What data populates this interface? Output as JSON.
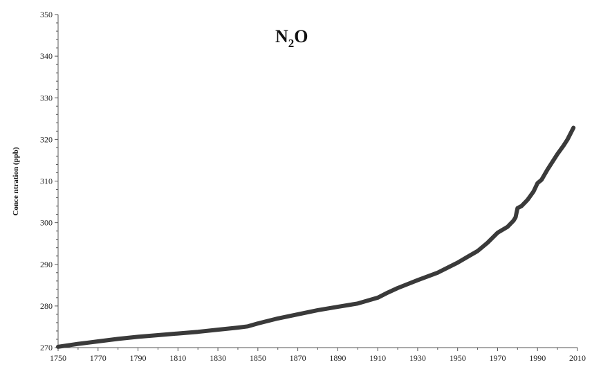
{
  "chart_data": {
    "type": "line",
    "title_main": "N",
    "title_sub": "2",
    "title_tail": "O",
    "ylabel": "Conce ntration (ppb)",
    "xlabel": "",
    "xlim": [
      1750,
      2010
    ],
    "ylim": [
      270,
      350
    ],
    "x_ticks": [
      1750,
      1770,
      1790,
      1810,
      1830,
      1850,
      1870,
      1890,
      1910,
      1930,
      1950,
      1970,
      1990,
      2010
    ],
    "y_ticks": [
      270,
      280,
      290,
      300,
      310,
      320,
      330,
      340,
      350
    ],
    "grid": false,
    "legend": "none",
    "line_color": "#3a3a3a",
    "series": [
      {
        "x": [
          1750,
          1760,
          1770,
          1780,
          1790,
          1800,
          1810,
          1820,
          1830,
          1840,
          1845,
          1850,
          1860,
          1870,
          1880,
          1890,
          1900,
          1910,
          1915,
          1920,
          1930,
          1940,
          1950,
          1955,
          1960,
          1965,
          1970,
          1975,
          1978,
          1979,
          1980,
          1982,
          1985,
          1988,
          1990,
          1992,
          1995,
          1998,
          2000,
          2003,
          2005,
          2008
        ],
        "y": [
          270.2,
          270.9,
          271.5,
          272.1,
          272.6,
          273.0,
          273.4,
          273.8,
          274.3,
          274.8,
          275.1,
          275.8,
          277.0,
          278.0,
          279.0,
          279.8,
          280.6,
          282.0,
          283.2,
          284.3,
          286.2,
          288.0,
          290.4,
          291.8,
          293.2,
          295.2,
          297.6,
          299.0,
          300.5,
          301.3,
          303.5,
          304.0,
          305.5,
          307.5,
          309.5,
          310.3,
          312.8,
          315.0,
          316.5,
          318.5,
          320.0,
          322.8
        ]
      }
    ]
  }
}
